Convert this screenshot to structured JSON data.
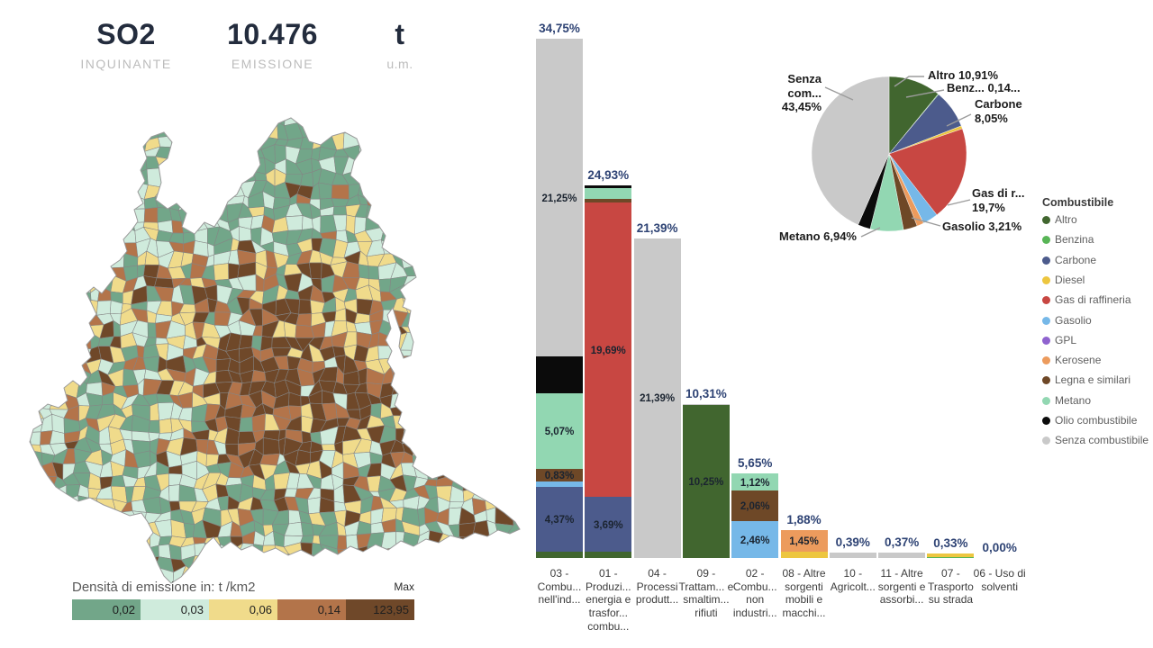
{
  "header": {
    "pollutant_value": "SO2",
    "pollutant_label": "INQUINANTE",
    "emission_value": "10.476",
    "emission_label": "EMISSIONE",
    "unit_value": "t",
    "unit_label": "u.m."
  },
  "map_legend": {
    "title": "Densità di emissione in:  t /km2",
    "max_label": "Max",
    "classes": [
      {
        "label": "0,02",
        "color": "#72A689"
      },
      {
        "label": "0,03",
        "color": "#CFEBDC"
      },
      {
        "label": "0,06",
        "color": "#F0DB8B"
      },
      {
        "label": "0,14",
        "color": "#B3744A"
      },
      {
        "label": "123,95",
        "color": "#6F4829"
      }
    ],
    "border_color": "#858585"
  },
  "fuel_colors": {
    "Altro": "#41662F",
    "Benzina": "#58B556",
    "Carbone": "#4C5B8C",
    "Diesel": "#EDC63F",
    "Gas di raffineria": "#C84742",
    "Gasolio": "#76B8E8",
    "GPL": "#8F63CF",
    "Kerosene": "#EC9B5D",
    "Legna e similari": "#6E4827",
    "Metano": "#92D7B2",
    "Olio combustibile": "#0B0B0B",
    "Senza combustibile": "#C9C9C9"
  },
  "fuel_legend": {
    "title": "Combustibile",
    "items": [
      "Altro",
      "Benzina",
      "Carbone",
      "Diesel",
      "Gas di raffineria",
      "Gasolio",
      "GPL",
      "Kerosene",
      "Legna e similari",
      "Metano",
      "Olio combustibile",
      "Senza combustibile"
    ]
  },
  "chart_data": [
    {
      "type": "bar",
      "stacked": true,
      "ylim": [
        0,
        34.75
      ],
      "value_format": "percent",
      "categories": [
        "03 - Combu... nell'ind...",
        "01 - Produzi... energia e trasfor... combu...",
        "04 - Processi produtt...",
        "09 - Trattam... e smaltim... rifiuti",
        "02 - Combu... non industri...",
        "08 - Altre sorgenti mobili e macchi...",
        "10 - Agricolt...",
        "11 - Altre sorgenti e assorbi...",
        "07 - Trasporto su strada",
        "06 - Uso di solventi"
      ],
      "totals": [
        "34,75%",
        "24,93%",
        "21,39%",
        "10,31%",
        "5,65%",
        "1,88%",
        "0,39%",
        "0,37%",
        "0,33%",
        "0,00%"
      ],
      "bars": [
        {
          "segments": [
            {
              "fuel": "Altro",
              "value": 0.4
            },
            {
              "fuel": "Carbone",
              "value": 4.37,
              "label": "4,37%"
            },
            {
              "fuel": "Gasolio",
              "value": 0.35
            },
            {
              "fuel": "Legna e similari",
              "value": 0.83,
              "label": "0,83%"
            },
            {
              "fuel": "Metano",
              "value": 5.07,
              "label": "5,07%"
            },
            {
              "fuel": "Olio combustibile",
              "value": 2.48
            },
            {
              "fuel": "Senza combustibile",
              "value": 21.25,
              "label": "21,25%"
            }
          ]
        },
        {
          "segments": [
            {
              "fuel": "Altro",
              "value": 0.4
            },
            {
              "fuel": "Carbone",
              "value": 3.69,
              "label": "3,69%"
            },
            {
              "fuel": "Gas di raffineria",
              "value": 19.69,
              "label": "19,69%"
            },
            {
              "fuel": "Legna e similari",
              "value": 0.25
            },
            {
              "fuel": "Metano",
              "value": 0.75
            },
            {
              "fuel": "Olio combustibile",
              "value": 0.15
            }
          ]
        },
        {
          "segments": [
            {
              "fuel": "Senza combustibile",
              "value": 21.39,
              "label": "21,39%"
            }
          ]
        },
        {
          "segments": [
            {
              "fuel": "Altro",
              "value": 10.25,
              "label": "10,25%"
            },
            {
              "fuel": "Senza combustibile",
              "value": 0.06
            }
          ]
        },
        {
          "segments": [
            {
              "fuel": "Gasolio",
              "value": 2.46,
              "label": "2,46%"
            },
            {
              "fuel": "Legna e similari",
              "value": 2.06,
              "label": "2,06%"
            },
            {
              "fuel": "Metano",
              "value": 1.12,
              "label": "1,12%"
            }
          ]
        },
        {
          "segments": [
            {
              "fuel": "Diesel",
              "value": 0.43
            },
            {
              "fuel": "Kerosene",
              "value": 1.45,
              "label": "1,45%"
            }
          ]
        },
        {
          "segments": [
            {
              "fuel": "Senza combustibile",
              "value": 0.39
            }
          ]
        },
        {
          "segments": [
            {
              "fuel": "Senza combustibile",
              "value": 0.37
            }
          ]
        },
        {
          "segments": [
            {
              "fuel": "Benzina",
              "value": 0.08
            },
            {
              "fuel": "Diesel",
              "value": 0.25
            }
          ]
        },
        {
          "segments": []
        }
      ]
    },
    {
      "type": "pie",
      "legend_position": "right",
      "slices": [
        {
          "name": "Altro",
          "value": 10.91
        },
        {
          "name": "Benzina",
          "value": 0.14
        },
        {
          "name": "Carbone",
          "value": 8.05
        },
        {
          "name": "Diesel",
          "value": 0.63
        },
        {
          "name": "Gas di raffineria",
          "value": 19.7
        },
        {
          "name": "Gasolio",
          "value": 3.21
        },
        {
          "name": "GPL",
          "value": 0.02
        },
        {
          "name": "Kerosene",
          "value": 1.45
        },
        {
          "name": "Legna e similari",
          "value": 2.89
        },
        {
          "name": "Metano",
          "value": 6.94
        },
        {
          "name": "Olio combustibile",
          "value": 2.61
        },
        {
          "name": "Senza combustibile",
          "value": 43.45
        }
      ],
      "callouts": {
        "senza": {
          "text": "Senza com...",
          "text2": "43,45%"
        },
        "altro": {
          "text": "Altro 10,91%"
        },
        "benzina": {
          "text": "Benz... 0,14..."
        },
        "carbone": {
          "text": "Carbone",
          "text2": "8,05%"
        },
        "gas": {
          "text": "Gas di r...",
          "text2": "19,7%"
        },
        "gasolio": {
          "text": "Gasolio 3,21%"
        },
        "metano": {
          "text": "Metano 6,94%"
        }
      }
    }
  ]
}
